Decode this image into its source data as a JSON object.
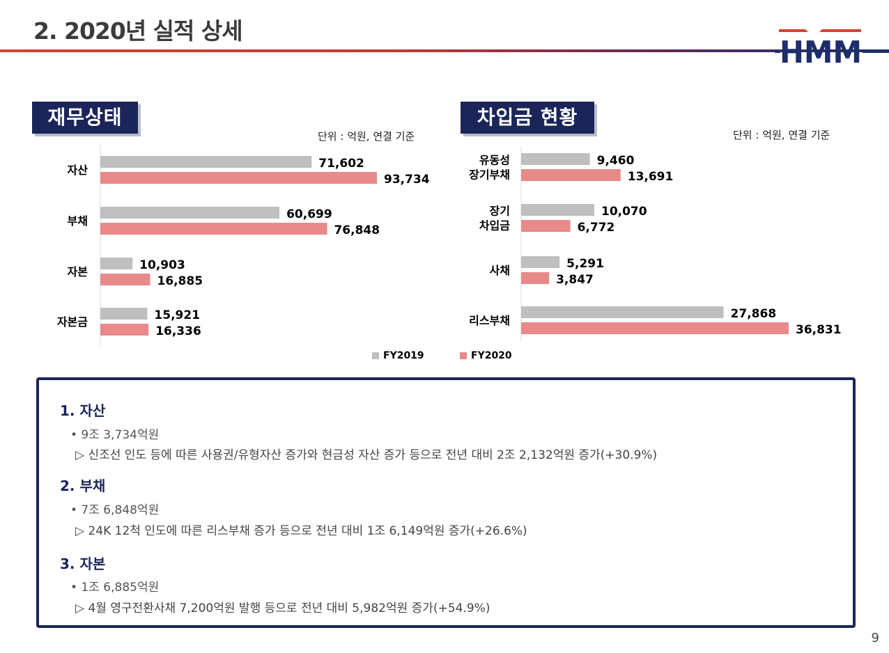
{
  "header": {
    "title": "2. 2020년 실적 상세",
    "logo_text": "HMM",
    "logo_colors": {
      "red": "#d9412e",
      "navy": "#1e2d6b"
    }
  },
  "legend": {
    "fy2019": "FY2019",
    "fy2020": "FY2020",
    "fy2019_color": "#bfbfbf",
    "fy2020_color": "#e8898a"
  },
  "financial": {
    "heading": "재무상태",
    "unit": "단위 : 억원, 연결 기준"
  },
  "debt": {
    "heading": "차입금 현황",
    "unit": "단위 : 억원, 연결 기준"
  },
  "chart_data": [
    {
      "type": "bar",
      "orientation": "horizontal",
      "title": "재무상태",
      "categories": [
        [
          "자산"
        ],
        [
          "부채"
        ],
        [
          "자본"
        ],
        [
          "자본금"
        ]
      ],
      "series": [
        {
          "name": "FY2019",
          "values": [
            71602,
            60699,
            10903,
            15921
          ],
          "labels": [
            "71,602",
            "60,699",
            "10,903",
            "15,921"
          ]
        },
        {
          "name": "FY2020",
          "values": [
            93734,
            76848,
            16885,
            16336
          ],
          "labels": [
            "93,734",
            "76,848",
            "16,885",
            "16,336"
          ]
        }
      ],
      "xlim": [
        0,
        100000
      ],
      "unit": "억원"
    },
    {
      "type": "bar",
      "orientation": "horizontal",
      "title": "차입금 현황",
      "categories": [
        [
          "유동성",
          "장기부채"
        ],
        [
          "장기",
          "차입금"
        ],
        [
          "사채"
        ],
        [
          "리스부채"
        ]
      ],
      "series": [
        {
          "name": "FY2019",
          "values": [
            9460,
            10070,
            5291,
            27868
          ],
          "labels": [
            "9,460",
            "10,070",
            "5,291",
            "27,868"
          ]
        },
        {
          "name": "FY2020",
          "values": [
            13691,
            6772,
            3847,
            36831
          ],
          "labels": [
            "13,691",
            "6,772",
            "3,847",
            "36,831"
          ]
        }
      ],
      "xlim": [
        0,
        40000
      ],
      "unit": "억원"
    }
  ],
  "summary": {
    "items": [
      {
        "head": "1. 자산",
        "bullet": "• 9조 3,734억원",
        "detail": "▷  신조선 인도 등에 따른 사용권/유형자산 증가와 현금성 자산 증가 등으로 전년 대비 2조 2,132억원 증가(+30.9%)"
      },
      {
        "head": "2. 부채",
        "bullet": "• 7조 6,848억원",
        "detail": "▷  24K 12척 인도에 따른 리스부채 증가 등으로 전년 대비 1조 6,149억원 증가(+26.6%)"
      },
      {
        "head": "3. 자본",
        "bullet": "• 1조 6,885억원",
        "detail": "▷  4월 영구전환사채 7,200억원 발행 등으로 전년 대비 5,982억원 증가(+54.9%)"
      }
    ]
  },
  "page_number": "9"
}
